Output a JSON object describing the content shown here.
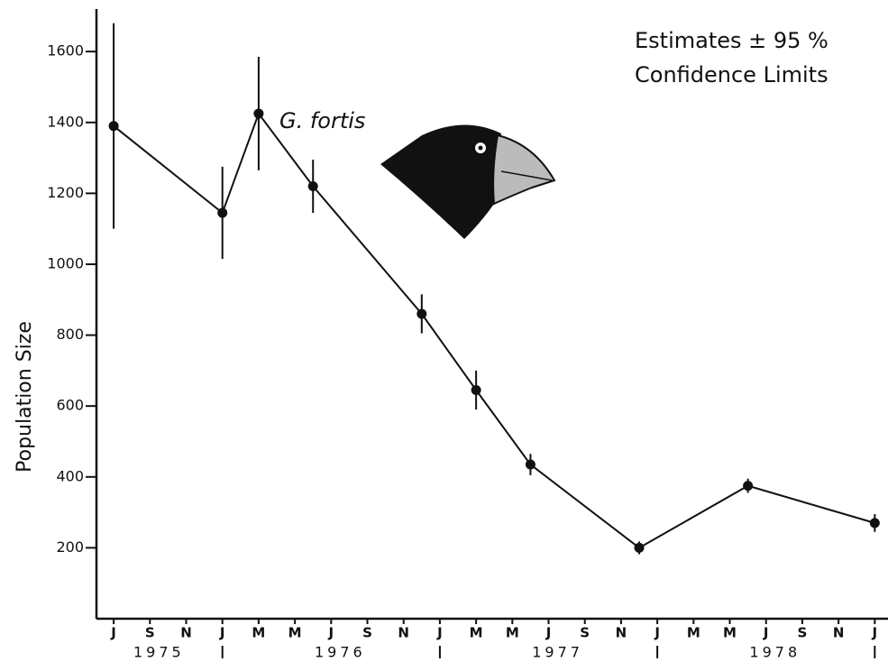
{
  "chart_data": {
    "type": "line",
    "title": "G. fortis",
    "annotations": [
      "Estimates ± 95 %",
      "Confidence Limits"
    ],
    "y_label": "Population Size",
    "x": [
      0,
      6,
      8,
      11,
      17,
      20,
      23,
      29,
      35,
      42
    ],
    "series": [
      {
        "color": "#111111",
        "values": [
          1390,
          1145,
          1425,
          1220,
          860,
          645,
          435,
          200,
          375,
          270
        ],
        "errors": [
          290,
          130,
          160,
          75,
          55,
          55,
          30,
          18,
          20,
          25
        ]
      }
    ],
    "xlim": [
      -0.95,
      42.73
    ],
    "ylim": [
      0,
      1720
    ],
    "yticks": [
      200,
      400,
      600,
      800,
      1000,
      1200,
      1400,
      1600
    ],
    "xticks": [
      {
        "value": 0,
        "label": "J"
      },
      {
        "value": 2,
        "label": "S"
      },
      {
        "value": 4,
        "label": "N"
      },
      {
        "value": 6,
        "label": "J"
      },
      {
        "value": 8,
        "label": "M"
      },
      {
        "value": 10,
        "label": "M"
      },
      {
        "value": 12,
        "label": "J"
      },
      {
        "value": 14,
        "label": "S"
      },
      {
        "value": 16,
        "label": "N"
      },
      {
        "value": 18,
        "label": "J"
      },
      {
        "value": 20,
        "label": "M"
      },
      {
        "value": 22,
        "label": "M"
      },
      {
        "value": 24,
        "label": "J"
      },
      {
        "value": 26,
        "label": "S"
      },
      {
        "value": 28,
        "label": "N"
      },
      {
        "value": 30,
        "label": "J"
      },
      {
        "value": 32,
        "label": "M"
      },
      {
        "value": 34,
        "label": "M"
      },
      {
        "value": 36,
        "label": "J"
      },
      {
        "value": 38,
        "label": "S"
      },
      {
        "value": 40,
        "label": "N"
      },
      {
        "value": 42,
        "label": "J"
      }
    ],
    "year_labels": [
      {
        "value": 2.5,
        "label": "1975"
      },
      {
        "value": 12.5,
        "label": "1976"
      },
      {
        "value": 24.5,
        "label": "1977"
      },
      {
        "value": 36.5,
        "label": "1978"
      }
    ],
    "year_dividers": [
      6,
      18,
      30,
      42
    ]
  }
}
